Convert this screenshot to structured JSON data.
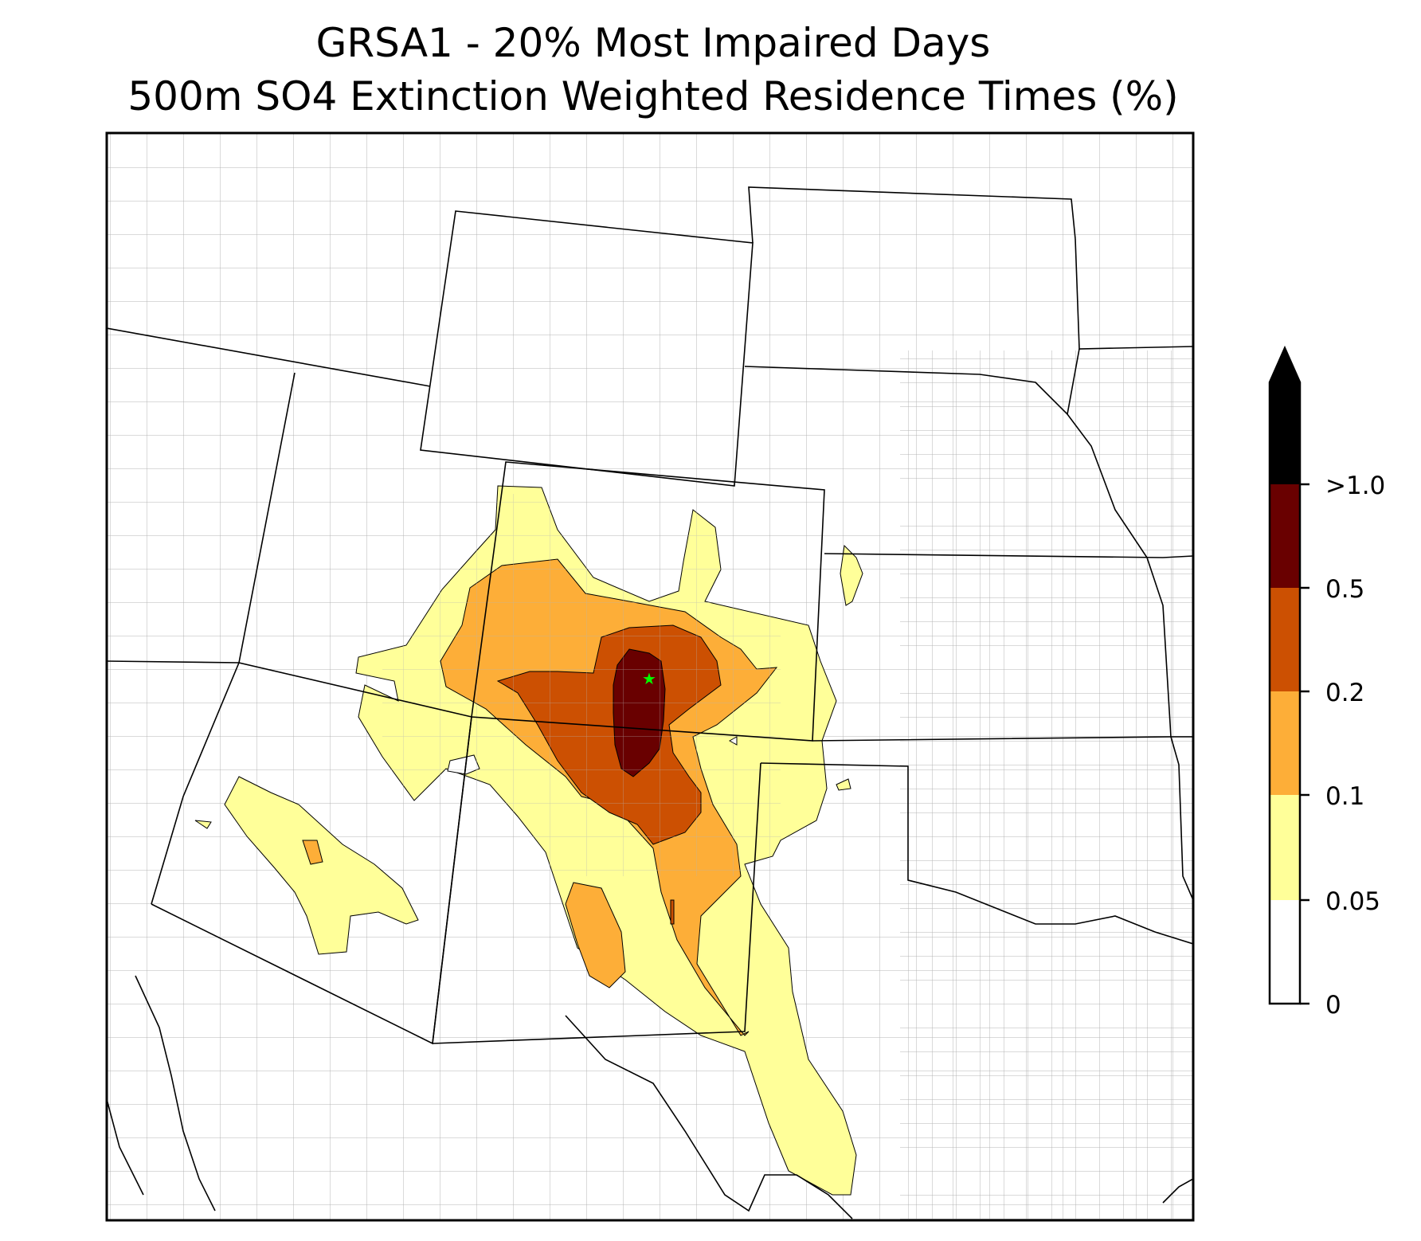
{
  "title": {
    "line1": "GRSA1 - 20% Most Impaired Days",
    "line2": "500m SO4 Extinction Weighted Residence Times (%)"
  },
  "colorbar": {
    "labels": [
      "0",
      "0.05",
      "0.1",
      "0.2",
      "0.5",
      ">1.0"
    ],
    "bins": [
      {
        "from": "0",
        "to": "0.05",
        "color": "#ffffff"
      },
      {
        "from": "0.05",
        "to": "0.1",
        "color": "#ffff99"
      },
      {
        "from": "0.1",
        "to": "0.2",
        "color": "#fdae38"
      },
      {
        "from": "0.2",
        "to": "0.5",
        "color": "#cc5002"
      },
      {
        "from": "0.5",
        "to": "1.0",
        "color": "#690000"
      },
      {
        "from": "1.0",
        "to": "",
        "color": "#000000"
      }
    ],
    "extend": "max"
  },
  "map": {
    "receptor_marker": "green-star",
    "receptor_color": "#00ff00",
    "boundary_color": "#000000",
    "county_color": "#aaaaaa"
  }
}
